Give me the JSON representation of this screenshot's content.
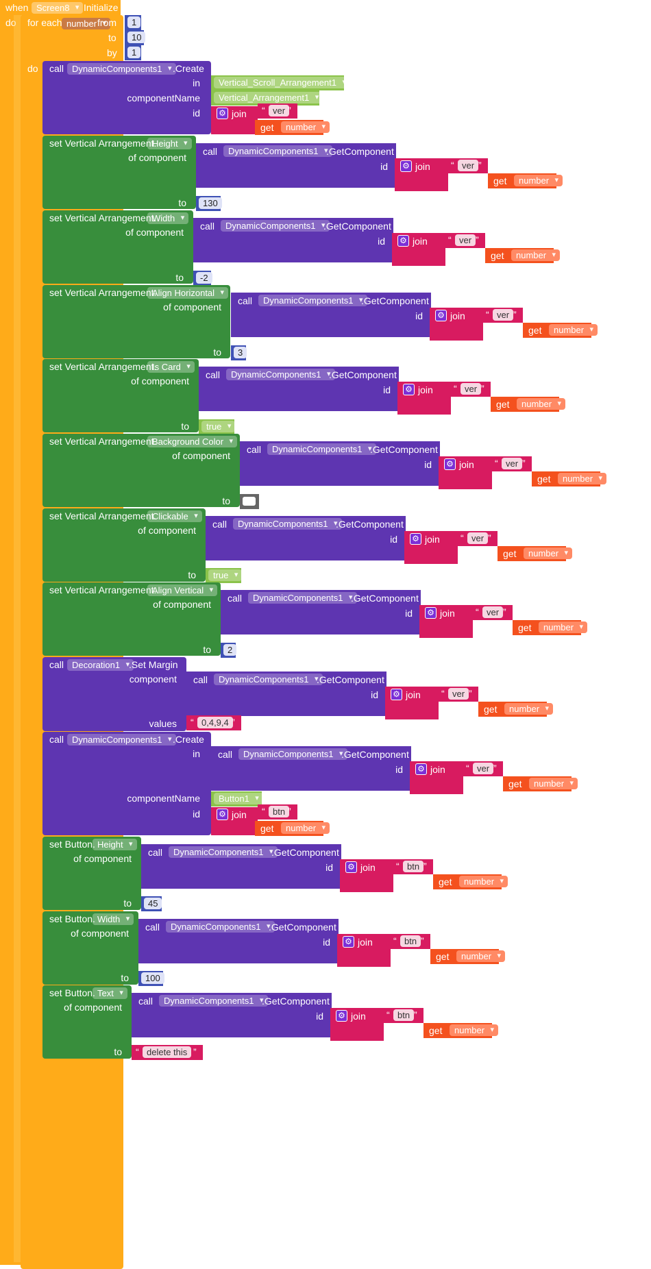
{
  "colors": {
    "event": "#f9a825",
    "control": "#ffab19",
    "procedure": "#5e35b1",
    "setter": "#388e3c",
    "text": "#d81b60",
    "getter": "#f4511e",
    "math": "#3f51b5",
    "component_green": "#8bc34a"
  },
  "event": {
    "when": "when",
    "component": "Screen8",
    "event": "Initialize",
    "do": "do"
  },
  "loop": {
    "label": "for each",
    "var": "number",
    "from_label": "from",
    "from": "1",
    "to_label": "to",
    "to": "10",
    "by_label": "by",
    "by": "1",
    "do": "do"
  },
  "common": {
    "call": "call",
    "dyn": "DynamicComponents1",
    "get_component": ".GetComponent",
    "create": ".Create",
    "id": "id",
    "join": "join",
    "get": "get",
    "to": "to",
    "of_component": "of component",
    "in": "in",
    "component_name": "componentName",
    "component": "component",
    "values": "values",
    "ver": "ver",
    "btn": "btn"
  },
  "blocks": {
    "create1": {
      "in": "Vertical_Scroll_Arrangement1",
      "name": "Vertical_Arrangement1"
    },
    "va_prefix": "set Vertical Arrangement.",
    "btn_prefix": "set Button.",
    "set1": {
      "prop": "Height",
      "value": "130"
    },
    "set2": {
      "prop": "Width",
      "value": "-2"
    },
    "set3": {
      "prop": "Align Horizontal",
      "value": "3"
    },
    "set4": {
      "prop": "Is Card",
      "value": "true"
    },
    "set5": {
      "prop": "Background Color"
    },
    "set6": {
      "prop": "Clickable",
      "value": "true"
    },
    "set7": {
      "prop": "Align Vertical",
      "value": "2"
    },
    "margin": {
      "comp": "Decoration1",
      "method": ".Set Margin",
      "values": "0,4,9,4"
    },
    "create2": {
      "name": "Button1"
    },
    "bset1": {
      "prop": "Height",
      "value": "45"
    },
    "bset2": {
      "prop": "Width",
      "value": "100"
    },
    "bset3": {
      "prop": "Text",
      "value": "delete this"
    }
  }
}
